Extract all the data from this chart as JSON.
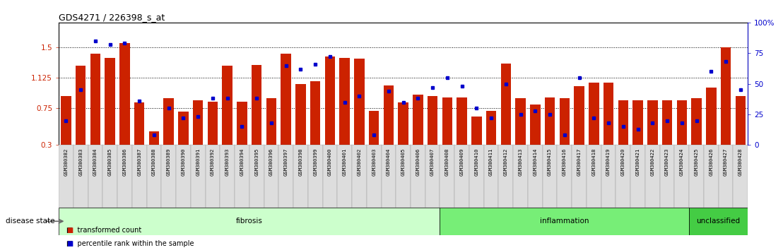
{
  "title": "GDS4271 / 226398_s_at",
  "samples": [
    "GSM380382",
    "GSM380383",
    "GSM380384",
    "GSM380385",
    "GSM380386",
    "GSM380387",
    "GSM380388",
    "GSM380389",
    "GSM380390",
    "GSM380391",
    "GSM380392",
    "GSM380393",
    "GSM380394",
    "GSM380395",
    "GSM380396",
    "GSM380397",
    "GSM380398",
    "GSM380399",
    "GSM380400",
    "GSM380401",
    "GSM380402",
    "GSM380403",
    "GSM380404",
    "GSM380405",
    "GSM380406",
    "GSM380407",
    "GSM380408",
    "GSM380409",
    "GSM380410",
    "GSM380411",
    "GSM380412",
    "GSM380413",
    "GSM380414",
    "GSM380415",
    "GSM380416",
    "GSM380417",
    "GSM380418",
    "GSM380419",
    "GSM380420",
    "GSM380421",
    "GSM380422",
    "GSM380423",
    "GSM380424",
    "GSM380425",
    "GSM380426",
    "GSM380427",
    "GSM380428"
  ],
  "bar_values": [
    0.9,
    1.27,
    1.42,
    1.37,
    1.55,
    0.82,
    0.47,
    0.87,
    0.71,
    0.85,
    0.83,
    1.27,
    0.83,
    1.28,
    0.87,
    1.42,
    1.05,
    1.08,
    1.38,
    1.37,
    1.36,
    0.72,
    1.03,
    0.82,
    0.92,
    0.9,
    0.88,
    0.88,
    0.65,
    0.72,
    1.3,
    0.87,
    0.8,
    0.88,
    0.87,
    1.02,
    1.06,
    1.06,
    0.85,
    0.85,
    0.85,
    0.85,
    0.85,
    0.87,
    1.0,
    1.5,
    0.9
  ],
  "percentile_values": [
    20,
    45,
    85,
    82,
    83,
    36,
    8,
    30,
    22,
    23,
    38,
    38,
    15,
    38,
    18,
    65,
    62,
    66,
    72,
    35,
    40,
    8,
    44,
    35,
    38,
    47,
    55,
    48,
    30,
    22,
    50,
    25,
    28,
    25,
    8,
    55,
    22,
    18,
    15,
    13,
    18,
    20,
    18,
    20,
    60,
    68,
    45
  ],
  "groups": [
    {
      "name": "fibrosis",
      "start": 0,
      "end": 26,
      "color": "#ccffcc"
    },
    {
      "name": "inflammation",
      "start": 26,
      "end": 43,
      "color": "#77ee77"
    },
    {
      "name": "unclassified",
      "start": 43,
      "end": 47,
      "color": "#44cc44"
    }
  ],
  "bar_color": "#cc2200",
  "dot_color": "#0000cc",
  "ylim_left": [
    0.3,
    1.8
  ],
  "ylim_right": [
    0,
    100
  ],
  "yticks_left": [
    0.3,
    0.75,
    1.125,
    1.5
  ],
  "yticks_right": [
    0,
    25,
    50,
    75,
    100
  ],
  "ytick_labels_left": [
    "0.3",
    "0.75",
    "1.125",
    "1.5"
  ],
  "ytick_labels_right": [
    "0",
    "25",
    "50",
    "75",
    "100%"
  ],
  "hlines": [
    0.75,
    1.125,
    1.5
  ],
  "legend_red_label": "transformed count",
  "legend_blue_label": "percentile rank within the sample",
  "disease_state_label": "disease state"
}
